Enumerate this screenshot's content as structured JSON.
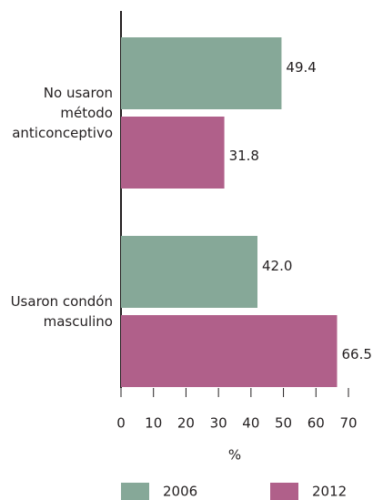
{
  "chart_data": {
    "type": "hbar",
    "categories": [
      [
        "No usaron",
        "método",
        "anticonceptivo"
      ],
      [
        "Usaron condón",
        "masculino"
      ]
    ],
    "series": [
      {
        "name": "2006",
        "color": "#86a898",
        "values": [
          49.4,
          42.0
        ],
        "value_labels": [
          "49.4",
          "42.0"
        ]
      },
      {
        "name": "2012",
        "color": "#b0608a",
        "values": [
          31.8,
          66.5
        ],
        "value_labels": [
          "31.8",
          "66.5"
        ]
      }
    ],
    "xlabel": "%",
    "xlim": [
      0,
      70
    ],
    "xticks": [
      0,
      10,
      20,
      30,
      40,
      50,
      60,
      70
    ]
  }
}
